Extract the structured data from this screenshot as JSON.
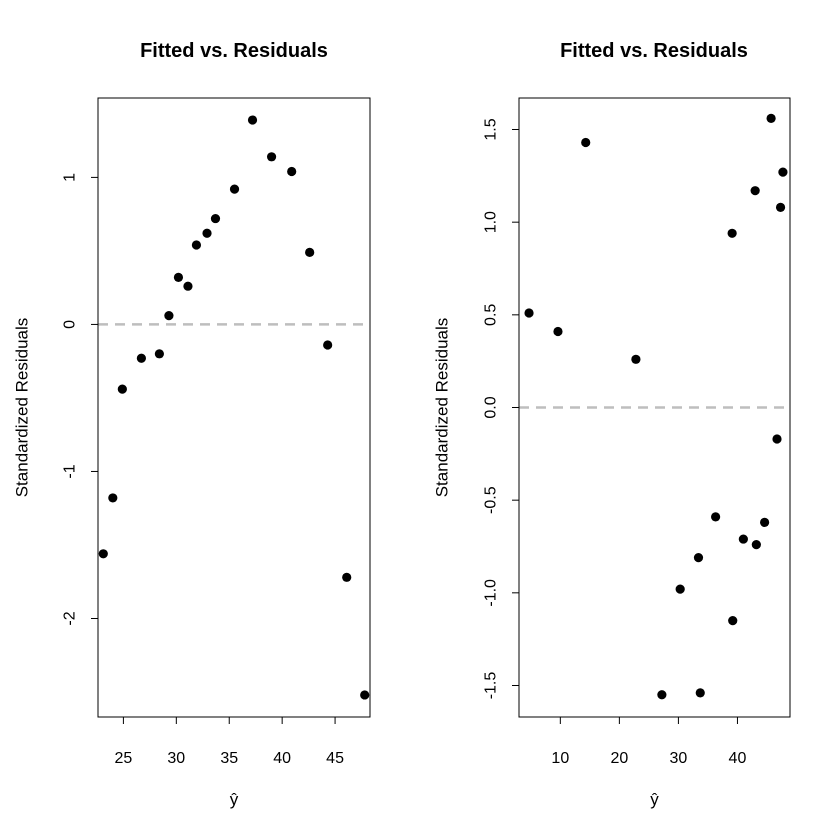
{
  "chart_data": [
    {
      "type": "scatter",
      "title": "Fitted vs. Residuals",
      "xlabel": "ŷ",
      "ylabel": "Standardized Residuals",
      "xlim": [
        22.6,
        48.3
      ],
      "ylim": [
        -2.67,
        1.54
      ],
      "xticks": [
        25,
        30,
        35,
        40,
        45
      ],
      "xtick_labels": [
        "25",
        "30",
        "35",
        "40",
        "45"
      ],
      "yticks": [
        -2,
        -1,
        0,
        1
      ],
      "ytick_labels": [
        "-2",
        "-1",
        "0",
        "1"
      ],
      "reference_line": {
        "y": 0,
        "style": "dashed",
        "color": "#bebebe"
      },
      "grid": false,
      "x": [
        23.1,
        24.0,
        24.9,
        26.7,
        28.4,
        29.3,
        30.2,
        31.1,
        31.9,
        32.9,
        33.7,
        35.5,
        37.2,
        39.0,
        40.9,
        42.6,
        44.3,
        46.1,
        47.8
      ],
      "y": [
        -1.56,
        -1.18,
        -0.44,
        -0.23,
        -0.2,
        0.06,
        0.32,
        0.26,
        0.54,
        0.62,
        0.72,
        0.92,
        1.39,
        1.14,
        1.04,
        0.49,
        -0.14,
        -1.72,
        -2.52
      ]
    },
    {
      "type": "scatter",
      "title": "Fitted vs. Residuals",
      "xlabel": "ŷ",
      "ylabel": "Standardized Residuals",
      "xlim": [
        3.0,
        48.9
      ],
      "ylim": [
        -1.67,
        1.67
      ],
      "xticks": [
        10,
        20,
        30,
        40
      ],
      "xtick_labels": [
        "10",
        "20",
        "30",
        "40"
      ],
      "yticks": [
        -1.5,
        -1.0,
        -0.5,
        0.0,
        0.5,
        1.0,
        1.5
      ],
      "ytick_labels": [
        "-1.5",
        "-1.0",
        "-0.5",
        "0.0",
        "0.5",
        "1.0",
        "1.5"
      ],
      "reference_line": {
        "y": 0,
        "style": "dashed",
        "color": "#bebebe"
      },
      "grid": false,
      "x": [
        4.7,
        9.6,
        14.3,
        22.8,
        27.2,
        30.3,
        33.4,
        33.7,
        36.3,
        39.1,
        39.2,
        41.0,
        43.0,
        43.2,
        44.6,
        45.7,
        46.7,
        47.3,
        47.7
      ],
      "y": [
        0.51,
        0.41,
        1.43,
        0.26,
        -1.55,
        -0.98,
        -0.81,
        -1.54,
        -0.59,
        0.94,
        -1.15,
        -0.71,
        1.17,
        -0.74,
        -0.62,
        1.56,
        -0.17,
        1.08,
        1.27
      ]
    }
  ]
}
